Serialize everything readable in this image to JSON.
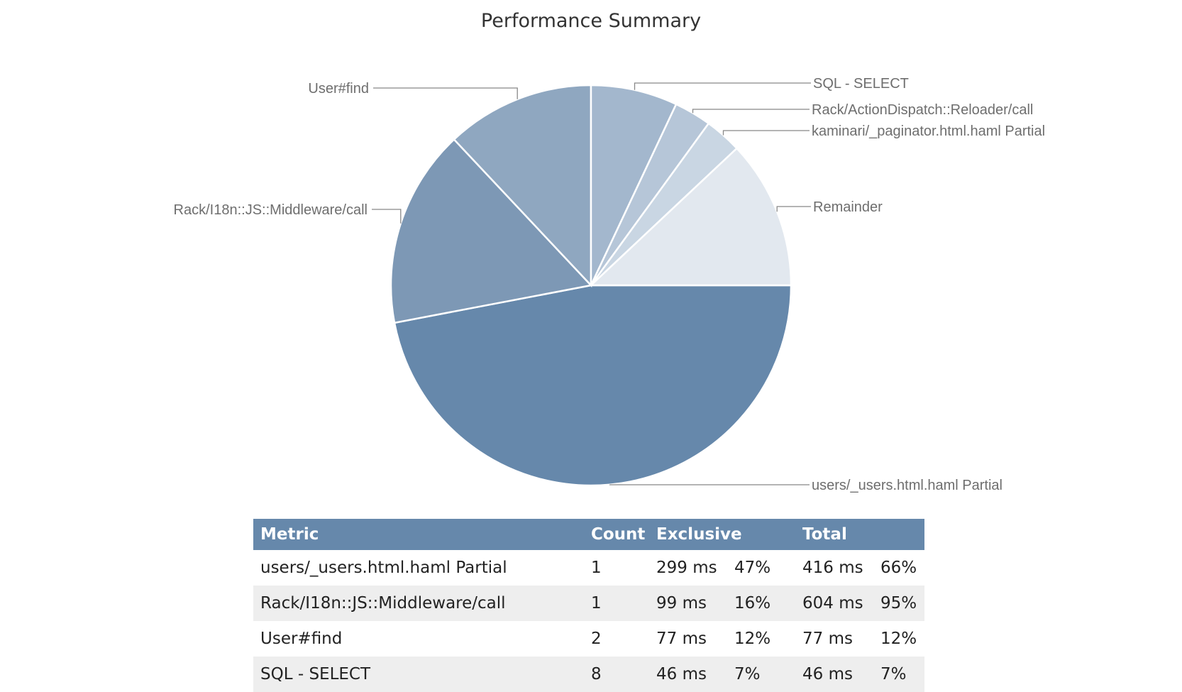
{
  "chart_data": {
    "type": "pie",
    "title": "Performance Summary",
    "slices": [
      {
        "label": "users/_users.html.haml Partial",
        "value": 47,
        "color": "#6688ab"
      },
      {
        "label": "Rack/I18n::JS::Middleware/call",
        "value": 16,
        "color": "#7d98b5"
      },
      {
        "label": "User#find",
        "value": 12,
        "color": "#8fa7c0"
      },
      {
        "label": "SQL - SELECT",
        "value": 7,
        "color": "#a3b7cd"
      },
      {
        "label": "Rack/ActionDispatch::Reloader/call",
        "value": 3,
        "color": "#b6c6d8"
      },
      {
        "label": "kaminari/_paginator.html.haml Partial",
        "value": 3,
        "color": "#c9d6e3"
      },
      {
        "label": "Remainder",
        "value": 12,
        "color": "#e2e8ef"
      }
    ]
  },
  "table": {
    "headers": {
      "metric": "Metric",
      "count": "Count",
      "exclusive": "Exclusive",
      "total": "Total"
    },
    "rows": [
      {
        "metric": "users/_users.html.haml Partial",
        "count": "1",
        "exclusive_ms": "299 ms",
        "exclusive_pct": "47%",
        "total_ms": "416 ms",
        "total_pct": "66%"
      },
      {
        "metric": "Rack/I18n::JS::Middleware/call",
        "count": "1",
        "exclusive_ms": "99 ms",
        "exclusive_pct": "16%",
        "total_ms": "604 ms",
        "total_pct": "95%"
      },
      {
        "metric": "User#find",
        "count": "2",
        "exclusive_ms": "77 ms",
        "exclusive_pct": "12%",
        "total_ms": "77 ms",
        "total_pct": "12%"
      },
      {
        "metric": "SQL - SELECT",
        "count": "8",
        "exclusive_ms": "46 ms",
        "exclusive_pct": "7%",
        "total_ms": "46 ms",
        "total_pct": "7%"
      }
    ]
  }
}
